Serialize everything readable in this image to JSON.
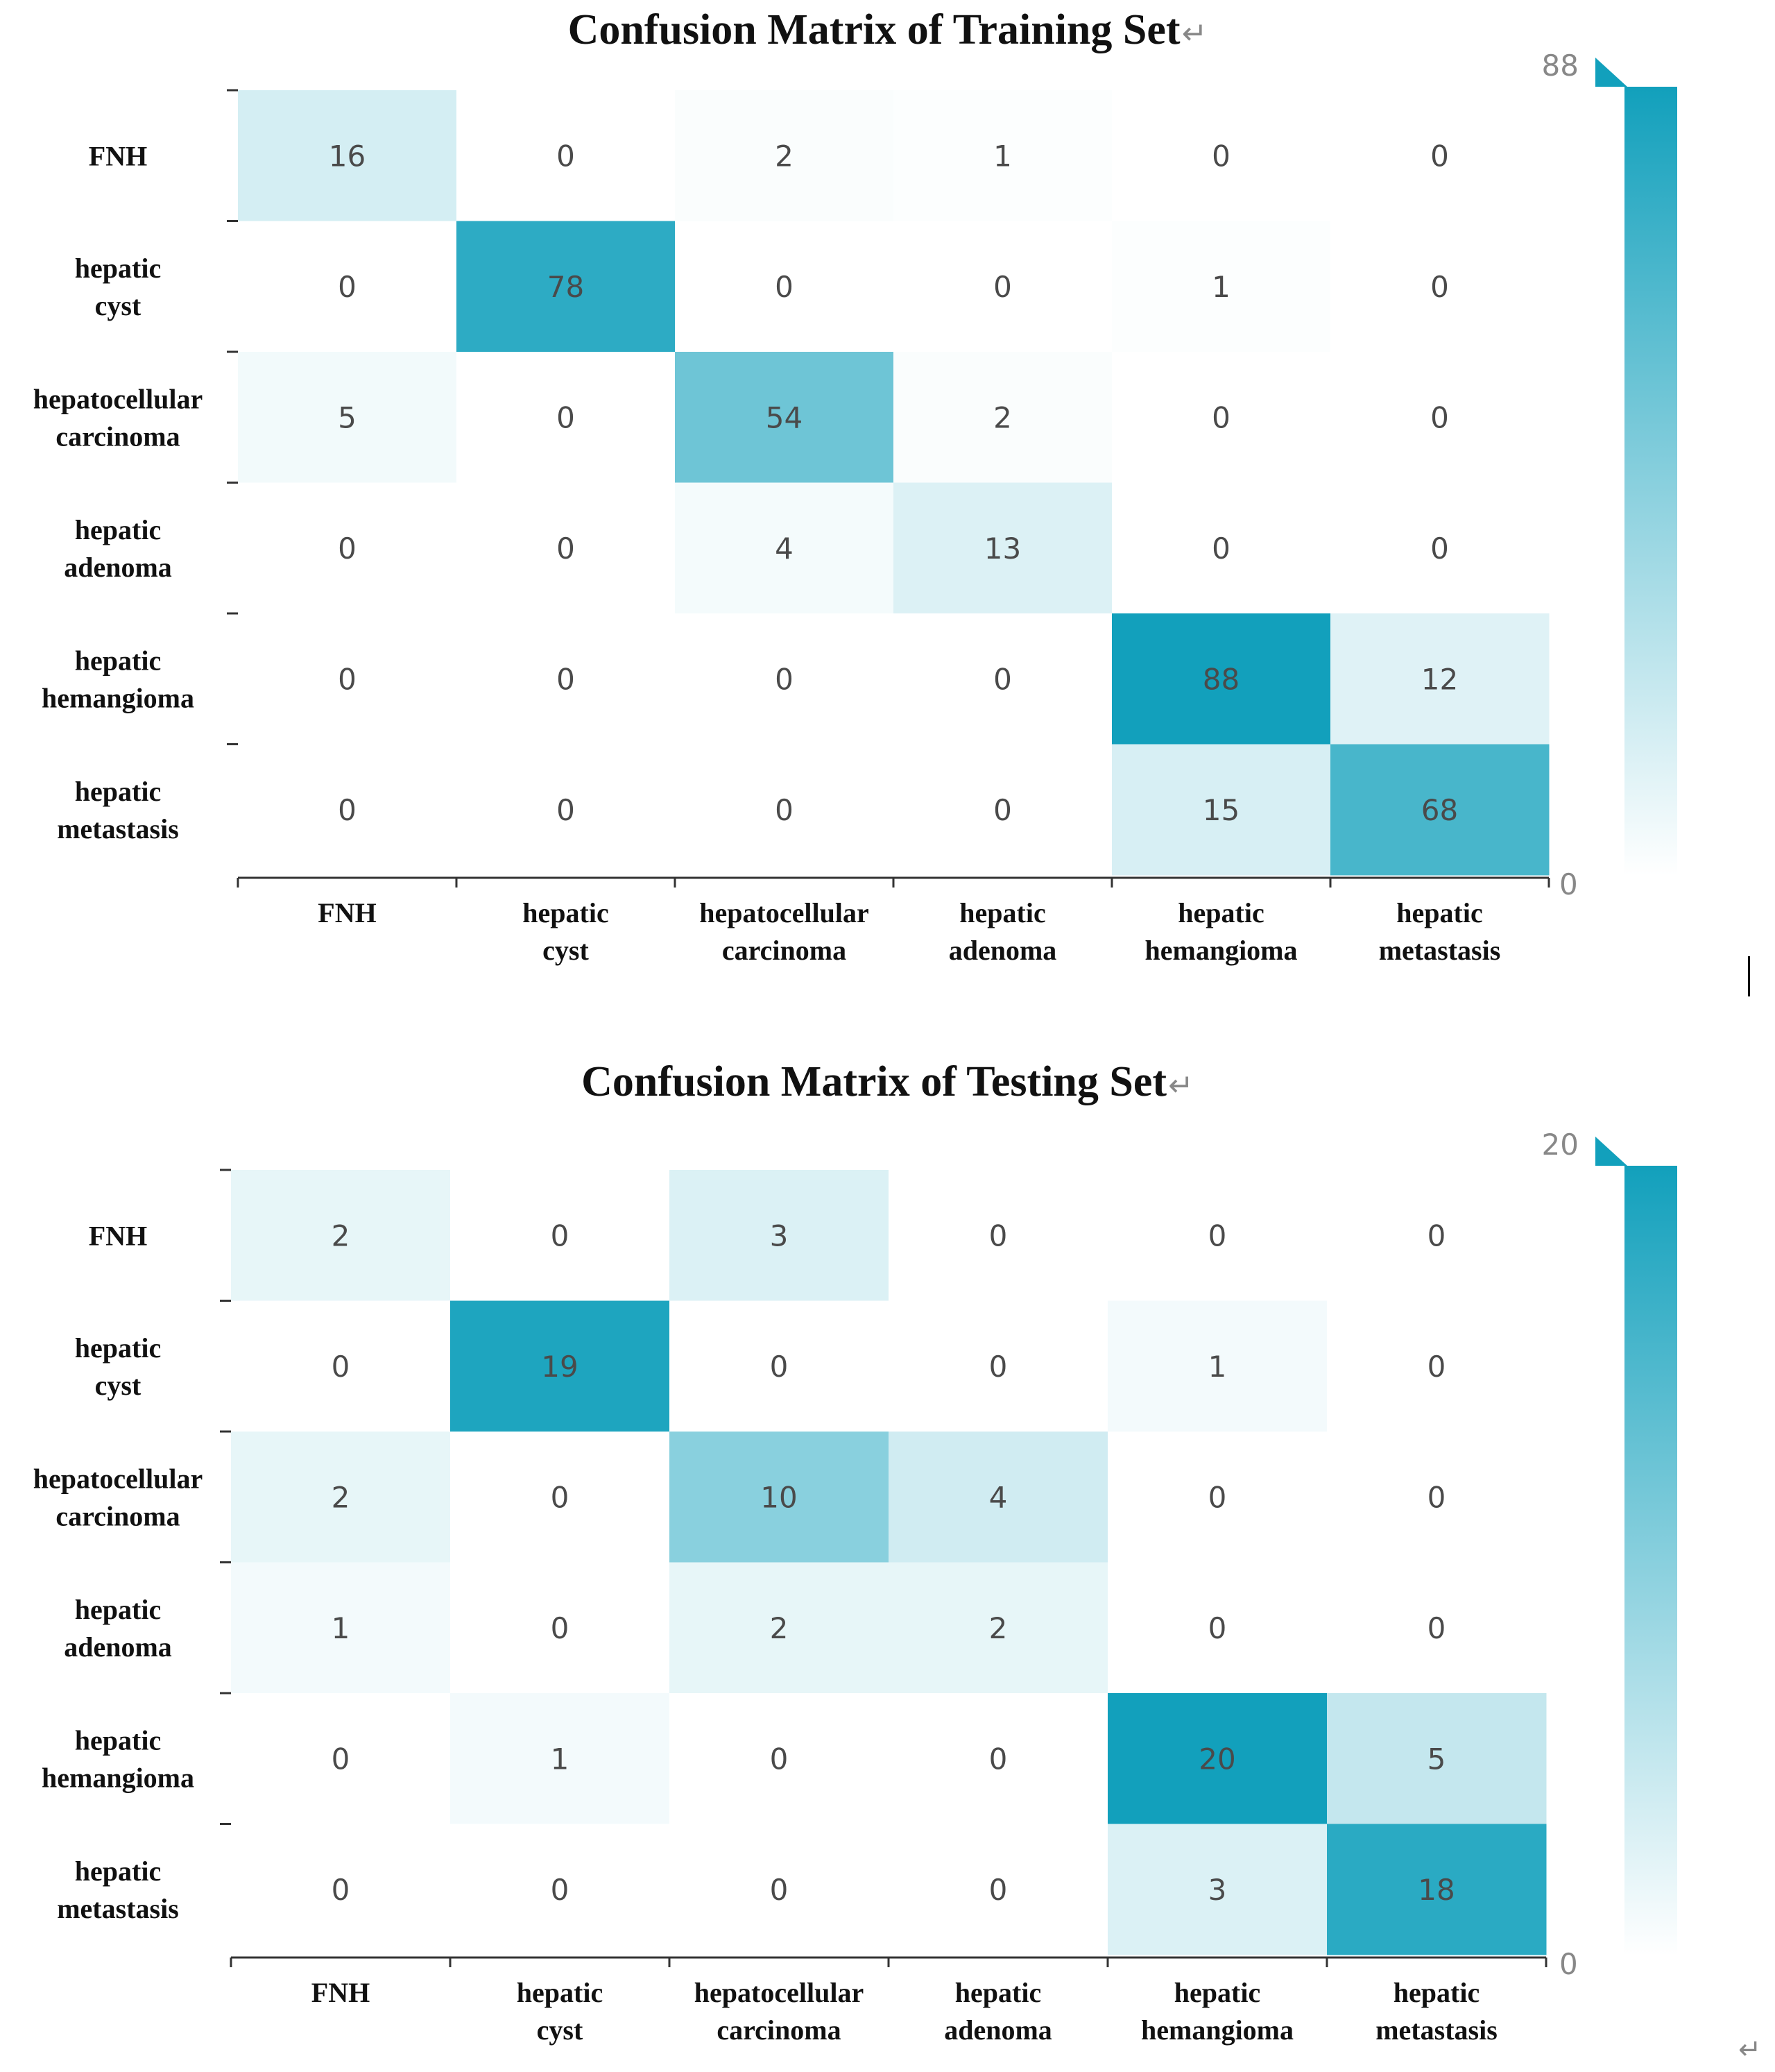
{
  "chart_data": [
    {
      "type": "heatmap",
      "title": "Confusion Matrix of Training Set",
      "title_mark": "↵",
      "row_labels": [
        [
          "FNH"
        ],
        [
          "hepatic",
          "cyst"
        ],
        [
          "hepatocellular",
          "carcinoma"
        ],
        [
          "hepatic",
          "adenoma"
        ],
        [
          "hepatic",
          "hemangioma"
        ],
        [
          "hepatic",
          "metastasis"
        ]
      ],
      "col_labels": [
        [
          "FNH"
        ],
        [
          "hepatic",
          "cyst"
        ],
        [
          "hepatocellular",
          "carcinoma"
        ],
        [
          "hepatic",
          "adenoma"
        ],
        [
          "hepatic",
          "hemangioma"
        ],
        [
          "hepatic",
          "metastasis"
        ]
      ],
      "matrix": [
        [
          16,
          0,
          2,
          1,
          0,
          0
        ],
        [
          0,
          78,
          0,
          0,
          1,
          0
        ],
        [
          5,
          0,
          54,
          2,
          0,
          0
        ],
        [
          0,
          0,
          4,
          13,
          0,
          0
        ],
        [
          0,
          0,
          0,
          0,
          88,
          12
        ],
        [
          0,
          0,
          0,
          0,
          15,
          68
        ]
      ],
      "color_range": [
        0,
        88
      ],
      "colorbar_labels": {
        "max": "88",
        "min": "0"
      }
    },
    {
      "type": "heatmap",
      "title": "Confusion Matrix of Testing Set",
      "title_mark": "↵",
      "row_labels": [
        [
          "FNH"
        ],
        [
          "hepatic",
          "cyst"
        ],
        [
          "hepatocellular",
          "carcinoma"
        ],
        [
          "hepatic",
          "adenoma"
        ],
        [
          "hepatic",
          "hemangioma"
        ],
        [
          "hepatic",
          "metastasis"
        ]
      ],
      "col_labels": [
        [
          "FNH"
        ],
        [
          "hepatic",
          "cyst"
        ],
        [
          "hepatocellular",
          "carcinoma"
        ],
        [
          "hepatic",
          "adenoma"
        ],
        [
          "hepatic",
          "hemangioma"
        ],
        [
          "hepatic",
          "metastasis"
        ]
      ],
      "matrix": [
        [
          2,
          0,
          3,
          0,
          0,
          0
        ],
        [
          0,
          19,
          0,
          0,
          1,
          0
        ],
        [
          2,
          0,
          10,
          4,
          0,
          0
        ],
        [
          1,
          0,
          2,
          2,
          0,
          0
        ],
        [
          0,
          1,
          0,
          0,
          20,
          5
        ],
        [
          0,
          0,
          0,
          0,
          3,
          18
        ]
      ],
      "color_range": [
        0,
        20
      ],
      "colorbar_labels": {
        "max": "20",
        "min": "0"
      }
    }
  ],
  "colors": {
    "low": "#ffffff",
    "high": "#12a0bc",
    "axis": "#333333"
  },
  "page_end_mark": "↵"
}
